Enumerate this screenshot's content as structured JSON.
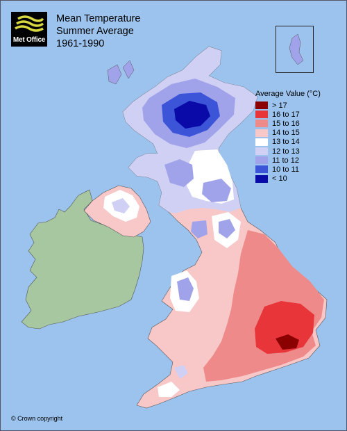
{
  "logo": {
    "text": "Met Office"
  },
  "title": {
    "line1": "Mean Temperature",
    "line2": "Summer Average",
    "line3": "1961-1990"
  },
  "legend": {
    "title": "Average Value (°C)",
    "items": [
      {
        "label": "> 17",
        "color": "#8b0000"
      },
      {
        "label": "16 to 17",
        "color": "#e8353a"
      },
      {
        "label": "15 to 16",
        "color": "#ee8a8a"
      },
      {
        "label": "14 to 15",
        "color": "#f8c8c8"
      },
      {
        "label": "13 to 14",
        "color": "#ffffff"
      },
      {
        "label": "12 to 13",
        "color": "#d0d0f4"
      },
      {
        "label": "11 to 12",
        "color": "#a0a2ea"
      },
      {
        "label": "10 to 11",
        "color": "#3c55d8"
      },
      {
        "label": "< 10",
        "color": "#0a0aa8"
      }
    ]
  },
  "copyright": "© Crown copyright",
  "colors": {
    "sea": "#9cc3ee",
    "ireland": "#a6c79f"
  }
}
